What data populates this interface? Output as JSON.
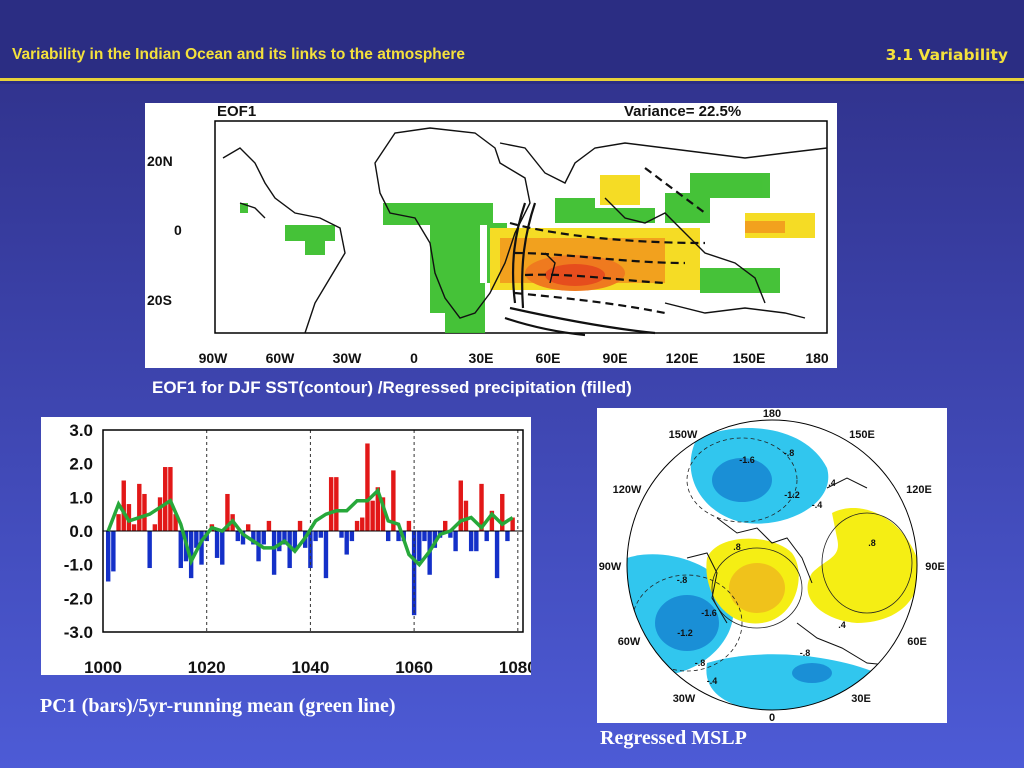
{
  "slide": {
    "title": "Variability in the Indian Ocean and its links to the atmosphere",
    "section": "3.1 Variability"
  },
  "eof_map": {
    "label": "EOF1",
    "variance": "Variance= 22.5%",
    "lat_ticks": [
      "20N",
      "0",
      "20S"
    ],
    "lon_ticks": [
      "90W",
      "60W",
      "30W",
      "0",
      "30E",
      "60E",
      "90E",
      "120E",
      "150E",
      "180"
    ],
    "caption": "EOF1 for DJF SST(contour) /Regressed precipitation (filled)"
  },
  "polar_map": {
    "lon_labels": [
      "180",
      "150E",
      "120E",
      "90E",
      "60E",
      "30E",
      "0",
      "30W",
      "60W",
      "90W",
      "120W",
      "150W"
    ],
    "contour_labels": [
      "-1.6",
      "-.8",
      "-1.2",
      "-.4",
      ".4",
      ".8",
      ".8",
      "-.8",
      "-1.6",
      "-1.2",
      "-.8",
      "-.4",
      "-.8",
      ".4"
    ],
    "caption": "Regressed MSLP",
    "colors": {
      "negative": "#31c6ee",
      "negative_strong": "#1a8fd6",
      "positive": "#f5ee14",
      "positive_strong": "#f0c21b"
    }
  },
  "chart_data": {
    "type": "bar",
    "title": "",
    "caption": "PC1 (bars)/5yr-running mean (green line)",
    "xlabel": "",
    "ylabel": "",
    "xlim": [
      1000,
      1081
    ],
    "ylim": [
      -3.0,
      3.0
    ],
    "x_ticks": [
      "1000",
      "1020",
      "1040",
      "1060",
      "1080"
    ],
    "y_ticks": [
      "3.0",
      "2.0",
      "1.0",
      "0.0",
      "-1.0",
      "-2.0",
      "-3.0"
    ],
    "dashed_years": [
      1020,
      1040,
      1060,
      1080
    ],
    "colors": {
      "positive": "#e21818",
      "negative": "#1430c8",
      "running_mean": "#27a83a"
    },
    "years": [
      1001,
      1002,
      1003,
      1004,
      1005,
      1006,
      1007,
      1008,
      1009,
      1010,
      1011,
      1012,
      1013,
      1014,
      1015,
      1016,
      1017,
      1018,
      1019,
      1020,
      1021,
      1022,
      1023,
      1024,
      1025,
      1026,
      1027,
      1028,
      1029,
      1030,
      1031,
      1032,
      1033,
      1034,
      1035,
      1036,
      1037,
      1038,
      1039,
      1040,
      1041,
      1042,
      1043,
      1044,
      1045,
      1046,
      1047,
      1048,
      1049,
      1050,
      1051,
      1052,
      1053,
      1054,
      1055,
      1056,
      1057,
      1058,
      1059,
      1060,
      1061,
      1062,
      1063,
      1064,
      1065,
      1066,
      1067,
      1068,
      1069,
      1070,
      1071,
      1072,
      1073,
      1074,
      1075,
      1076,
      1077,
      1078,
      1079
    ],
    "values": [
      -1.5,
      -1.2,
      0.5,
      1.5,
      0.8,
      0.2,
      1.4,
      1.1,
      -1.1,
      0.2,
      1.0,
      1.9,
      1.9,
      0.5,
      -1.1,
      -0.9,
      -1.4,
      -0.5,
      -1.0,
      -0.3,
      0.2,
      -0.8,
      -1.0,
      1.1,
      0.5,
      -0.3,
      -0.4,
      0.2,
      -0.4,
      -0.9,
      -0.4,
      0.3,
      -1.3,
      -0.6,
      -0.4,
      -1.1,
      -0.6,
      0.3,
      -0.5,
      -1.1,
      -0.3,
      -0.2,
      -1.4,
      1.6,
      1.6,
      -0.2,
      -0.7,
      -0.3,
      0.3,
      0.4,
      2.6,
      0.9,
      1.3,
      1.0,
      -0.3,
      1.8,
      -0.3,
      -0.3,
      0.3,
      -2.5,
      -0.9,
      -0.3,
      -1.3,
      -0.5,
      -0.2,
      0.3,
      -0.2,
      -0.6,
      1.5,
      0.9,
      -0.6,
      -0.6,
      1.4,
      -0.3,
      0.6,
      -1.4,
      1.1,
      -0.3,
      0.4
    ],
    "running_mean": {
      "x": [
        1001,
        1003,
        1005,
        1007,
        1009,
        1011,
        1013,
        1015,
        1017,
        1019,
        1021,
        1023,
        1025,
        1027,
        1029,
        1031,
        1033,
        1035,
        1037,
        1039,
        1041,
        1043,
        1045,
        1047,
        1049,
        1051,
        1053,
        1055,
        1057,
        1059,
        1061,
        1063,
        1065,
        1067,
        1069,
        1071,
        1073,
        1075,
        1077,
        1079
      ],
      "y": [
        0.0,
        0.8,
        0.3,
        0.4,
        0.5,
        0.7,
        0.9,
        0.2,
        -0.9,
        -0.3,
        0.1,
        0.0,
        0.3,
        -0.1,
        -0.3,
        -0.5,
        -0.5,
        -0.3,
        -0.6,
        -0.2,
        0.3,
        0.5,
        0.6,
        0.6,
        0.9,
        0.9,
        1.2,
        0.3,
        0.2,
        -0.7,
        -1.0,
        -0.6,
        -0.1,
        0.0,
        0.3,
        0.4,
        0.1,
        0.5,
        0.2,
        0.4
      ]
    }
  }
}
